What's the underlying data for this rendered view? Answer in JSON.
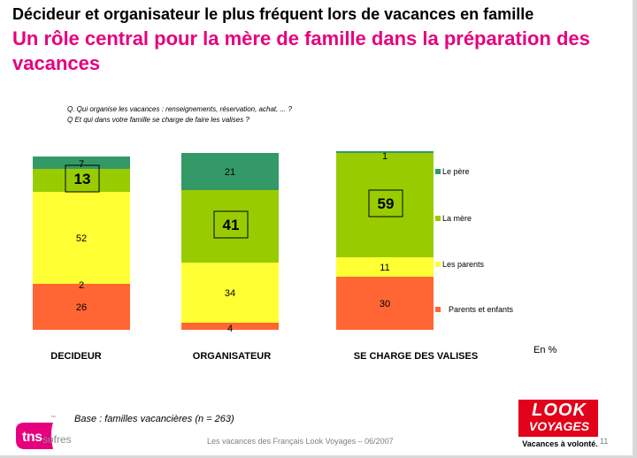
{
  "header": {
    "title": "Décideur et organisateur le plus fréquent lors de vacances en famille",
    "subtitle": "Un rôle central pour la mère de famille dans la préparation des vacances"
  },
  "questions": [
    "Q. Qui organise les vacances : renseignements, réservation, achat, ... ?",
    "Q Et qui dans votre famille se charge de faire les valises ?"
  ],
  "chart_data": {
    "type": "bar",
    "stacked": true,
    "unit_label": "En %",
    "categories": [
      "DECIDEUR",
      "ORGANISATEUR",
      "SE CHARGE DES VALISES"
    ],
    "series": [
      {
        "name": "Parents et enfants",
        "color": "#ff6633",
        "values": [
          26,
          4,
          30
        ]
      },
      {
        "name": "Les parents",
        "color": "#ffff33",
        "values": [
          52,
          34,
          11
        ]
      },
      {
        "name": "La mère",
        "color": "#99cc00",
        "values": [
          13,
          41,
          59
        ]
      },
      {
        "name": "Le père",
        "color": "#339966",
        "values": [
          7,
          21,
          1
        ]
      }
    ],
    "segment_labels": [
      [
        "26",
        "52",
        "13",
        "7"
      ],
      [
        "4",
        "34",
        "41",
        "21"
      ],
      [
        "30",
        "11",
        "59",
        "1"
      ]
    ],
    "extra_labels": [
      "2"
    ],
    "boxed": [
      [
        0,
        2
      ],
      [
        1,
        2
      ],
      [
        2,
        2
      ]
    ],
    "legend": [
      "Le père",
      "La mère",
      "Les parents",
      "Parents et enfants"
    ],
    "legend_position": "right"
  },
  "footer": {
    "base": "Base : familles vacancières (n = 263)",
    "source": "Les vacances des Français Look Voyages – 06/2007",
    "page": "11"
  },
  "logos": {
    "tns": "tns",
    "sofres": "sofres",
    "tm": "™",
    "look": "LOOK",
    "voyages": "VOYAGES",
    "tagline": "Vacances à volonté."
  }
}
